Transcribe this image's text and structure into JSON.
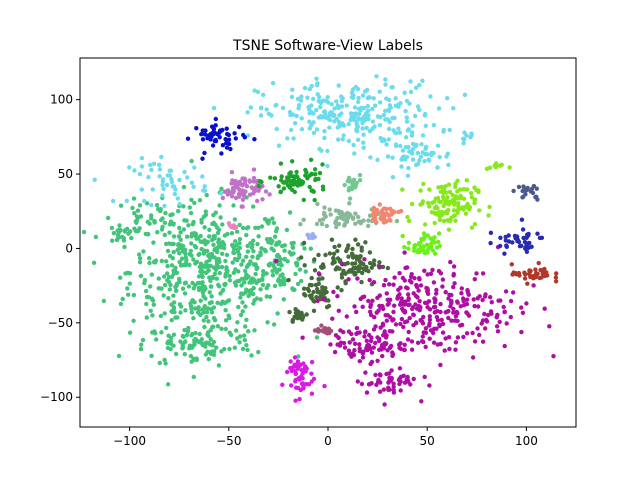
{
  "chart_data": {
    "type": "scatter",
    "title": "TSNE Software-View Labels",
    "xlabel": "",
    "ylabel": "",
    "xlim": [
      -125,
      125
    ],
    "ylim": [
      -120,
      128
    ],
    "xticks": [
      -100,
      -50,
      0,
      50,
      100
    ],
    "yticks": [
      -100,
      -50,
      0,
      50,
      100
    ],
    "grid": false,
    "legend": "none",
    "series": [
      {
        "color": "#42c47a",
        "clusters": [
          {
            "cx": -60,
            "cy": -15,
            "rx": 40,
            "ry": 45,
            "n": 520
          },
          {
            "cx": -90,
            "cy": 20,
            "rx": 18,
            "ry": 12,
            "n": 40
          },
          {
            "cx": -105,
            "cy": 10,
            "rx": 8,
            "ry": 8,
            "n": 20
          },
          {
            "cx": -65,
            "cy": -65,
            "rx": 28,
            "ry": 15,
            "n": 90
          },
          {
            "cx": -25,
            "cy": -10,
            "rx": 15,
            "ry": 25,
            "n": 80
          }
        ]
      },
      {
        "color": "#6bdcec",
        "clusters": [
          {
            "cx": 10,
            "cy": 90,
            "rx": 45,
            "ry": 22,
            "n": 260
          },
          {
            "cx": 45,
            "cy": 62,
            "rx": 18,
            "ry": 10,
            "n": 50
          },
          {
            "cx": -80,
            "cy": 45,
            "rx": 20,
            "ry": 15,
            "n": 50
          },
          {
            "cx": 70,
            "cy": 74,
            "rx": 4,
            "ry": 4,
            "n": 8
          }
        ]
      },
      {
        "color": "#0a10c8",
        "clusters": [
          {
            "cx": -55,
            "cy": 75,
            "rx": 13,
            "ry": 10,
            "n": 50
          }
        ]
      },
      {
        "color": "#c271c9",
        "clusters": [
          {
            "cx": -43,
            "cy": 40,
            "rx": 10,
            "ry": 10,
            "n": 60
          }
        ]
      },
      {
        "color": "#1ea22c",
        "clusters": [
          {
            "cx": -15,
            "cy": 45,
            "rx": 15,
            "ry": 10,
            "n": 70
          }
        ]
      },
      {
        "color": "#72c792",
        "clusters": [
          {
            "cx": 12,
            "cy": 42,
            "rx": 5,
            "ry": 8,
            "n": 20
          }
        ]
      },
      {
        "color": "#88b898",
        "clusters": [
          {
            "cx": 8,
            "cy": 20,
            "rx": 18,
            "ry": 8,
            "n": 60
          }
        ]
      },
      {
        "color": "#f08870",
        "clusters": [
          {
            "cx": 28,
            "cy": 23,
            "rx": 8,
            "ry": 5,
            "n": 40
          }
        ]
      },
      {
        "color": "#88e81c",
        "clusters": [
          {
            "cx": 60,
            "cy": 30,
            "rx": 15,
            "ry": 15,
            "n": 120
          },
          {
            "cx": 85,
            "cy": 55,
            "rx": 5,
            "ry": 3,
            "n": 10
          }
        ]
      },
      {
        "color": "#6cf01c",
        "clusters": [
          {
            "cx": 48,
            "cy": 2,
            "rx": 8,
            "ry": 8,
            "n": 40
          }
        ]
      },
      {
        "color": "#456b3a",
        "clusters": [
          {
            "cx": 10,
            "cy": -10,
            "rx": 18,
            "ry": 15,
            "n": 100
          },
          {
            "cx": -5,
            "cy": -30,
            "rx": 8,
            "ry": 10,
            "n": 40
          },
          {
            "cx": -15,
            "cy": -45,
            "rx": 5,
            "ry": 5,
            "n": 20
          }
        ]
      },
      {
        "color": "#ae0ea4",
        "clusters": [
          {
            "cx": 50,
            "cy": -40,
            "rx": 45,
            "ry": 30,
            "n": 320
          },
          {
            "cx": 20,
            "cy": -65,
            "rx": 18,
            "ry": 10,
            "n": 70
          },
          {
            "cx": 30,
            "cy": -90,
            "rx": 15,
            "ry": 10,
            "n": 50
          }
        ]
      },
      {
        "color": "#d81ce0",
        "clusters": [
          {
            "cx": -15,
            "cy": -85,
            "rx": 8,
            "ry": 15,
            "n": 50
          }
        ]
      },
      {
        "color": "#a44f78",
        "clusters": [
          {
            "cx": -2,
            "cy": -55,
            "rx": 4,
            "ry": 3,
            "n": 15
          }
        ]
      },
      {
        "color": "#2a2ab0",
        "clusters": [
          {
            "cx": 95,
            "cy": 5,
            "rx": 15,
            "ry": 8,
            "n": 40
          }
        ]
      },
      {
        "color": "#4b5a8a",
        "clusters": [
          {
            "cx": 100,
            "cy": 37,
            "rx": 7,
            "ry": 5,
            "n": 20
          }
        ]
      },
      {
        "color": "#b1372a",
        "clusters": [
          {
            "cx": 103,
            "cy": -17,
            "rx": 10,
            "ry": 6,
            "n": 40
          }
        ]
      },
      {
        "color": "#e885c0",
        "clusters": [
          {
            "cx": -48,
            "cy": 15,
            "rx": 2,
            "ry": 2,
            "n": 6
          }
        ]
      },
      {
        "color": "#9aaef0",
        "clusters": [
          {
            "cx": -8,
            "cy": 8,
            "rx": 3,
            "ry": 2,
            "n": 8
          }
        ]
      }
    ]
  }
}
